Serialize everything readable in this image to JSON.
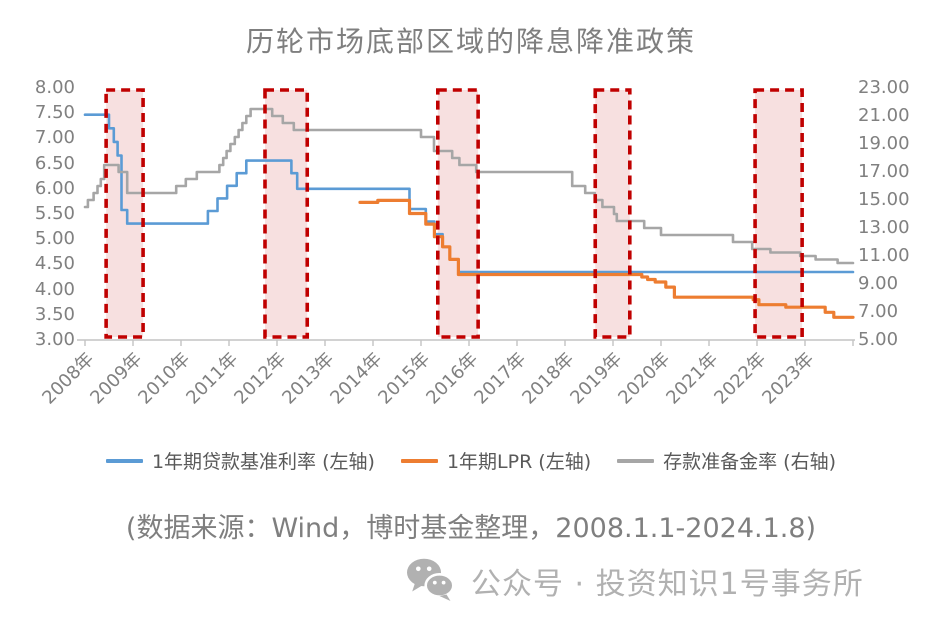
{
  "title": "历轮市场底部区域的降息降准政策",
  "source_note": "(数据来源：Wind，博时基金整理，2008.1.1-2024.1.8)",
  "footer": {
    "icon": "wechat-icon",
    "text": "公众号 · 投资知识1号事务所"
  },
  "colors": {
    "benchmark_blue": "#5B9BD5",
    "lpr_orange": "#ED7D31",
    "rrr_gray": "#A6A6A6",
    "highlight_border": "#C00000",
    "highlight_fill": "rgba(192,0,0,0.12)",
    "axis_line": "#C3C3C3",
    "tick_label": "#808080",
    "title_gray": "#7F7F7F"
  },
  "chart_data": {
    "type": "line",
    "title": "历轮市场底部区域的降息降准政策",
    "grid": false,
    "legend_position": "bottom",
    "x_axis": {
      "range": [
        2008,
        2024
      ],
      "tick_labels": [
        "2008年",
        "2009年",
        "2010年",
        "2011年",
        "2012年",
        "2013年",
        "2014年",
        "2015年",
        "2016年",
        "2017年",
        "2018年",
        "2019年",
        "2020年",
        "2021年",
        "2022年",
        "2023年"
      ]
    },
    "left_axis": {
      "range": [
        3,
        8
      ],
      "ticks": [
        "8.00",
        "7.50",
        "7.00",
        "6.50",
        "6.00",
        "5.50",
        "5.00",
        "4.50",
        "4.00",
        "3.50",
        "3.00"
      ]
    },
    "right_axis": {
      "range": [
        5,
        23
      ],
      "ticks": [
        "23.00",
        "21.00",
        "19.00",
        "17.00",
        "15.00",
        "13.00",
        "11.00",
        "9.00",
        "7.00",
        "5.00"
      ]
    },
    "highlight_regions": {
      "style": "red-dashed-box",
      "ranges": [
        [
          2008.44,
          2009.21
        ],
        [
          2011.75,
          2012.63
        ],
        [
          2015.35,
          2016.19
        ],
        [
          2018.63,
          2019.35
        ],
        [
          2021.96,
          2022.94
        ]
      ]
    },
    "series": [
      {
        "id": "benchmark-rate",
        "name": "1年期贷款基准利率 (左轴)",
        "axis": "left",
        "color": "#5B9BD5",
        "width": 2.6,
        "points": [
          [
            2008.0,
            7.47
          ],
          [
            2008.5,
            7.2
          ],
          [
            2008.6,
            6.93
          ],
          [
            2008.68,
            6.66
          ],
          [
            2008.76,
            5.58
          ],
          [
            2008.88,
            5.31
          ],
          [
            2010.56,
            5.56
          ],
          [
            2010.76,
            5.81
          ],
          [
            2010.96,
            6.06
          ],
          [
            2011.16,
            6.31
          ],
          [
            2011.36,
            6.56
          ],
          [
            2012.3,
            6.31
          ],
          [
            2012.42,
            6.0
          ],
          [
            2014.76,
            5.6
          ],
          [
            2015.1,
            5.35
          ],
          [
            2015.28,
            5.1
          ],
          [
            2015.45,
            4.85
          ],
          [
            2015.6,
            4.6
          ],
          [
            2015.78,
            4.35
          ],
          [
            2024.0,
            4.35
          ]
        ]
      },
      {
        "id": "lpr",
        "name": "1年期LPR (左轴)",
        "axis": "left",
        "color": "#ED7D31",
        "width": 3.2,
        "points": [
          [
            2013.73,
            5.73
          ],
          [
            2014.1,
            5.77
          ],
          [
            2014.76,
            5.51
          ],
          [
            2015.1,
            5.3
          ],
          [
            2015.28,
            5.05
          ],
          [
            2015.45,
            4.85
          ],
          [
            2015.6,
            4.6
          ],
          [
            2015.78,
            4.3
          ],
          [
            2019.6,
            4.25
          ],
          [
            2019.72,
            4.2
          ],
          [
            2019.88,
            4.15
          ],
          [
            2020.1,
            4.05
          ],
          [
            2020.28,
            3.85
          ],
          [
            2021.92,
            3.8
          ],
          [
            2022.04,
            3.7
          ],
          [
            2022.6,
            3.65
          ],
          [
            2023.42,
            3.55
          ],
          [
            2023.6,
            3.45
          ],
          [
            2024.0,
            3.45
          ]
        ]
      },
      {
        "id": "rrr",
        "name": "存款准备金率 (右轴)",
        "axis": "right",
        "color": "#A6A6A6",
        "width": 2.6,
        "points": [
          [
            2008.0,
            14.5
          ],
          [
            2008.06,
            15.0
          ],
          [
            2008.18,
            15.5
          ],
          [
            2008.26,
            16.0
          ],
          [
            2008.33,
            16.5
          ],
          [
            2008.4,
            17.5
          ],
          [
            2008.7,
            17.0
          ],
          [
            2008.88,
            15.5
          ],
          [
            2009.9,
            16.0
          ],
          [
            2010.1,
            16.5
          ],
          [
            2010.33,
            17.0
          ],
          [
            2010.8,
            17.5
          ],
          [
            2010.88,
            18.0
          ],
          [
            2010.95,
            18.5
          ],
          [
            2011.03,
            19.0
          ],
          [
            2011.12,
            19.5
          ],
          [
            2011.2,
            20.0
          ],
          [
            2011.28,
            20.5
          ],
          [
            2011.36,
            21.0
          ],
          [
            2011.45,
            21.5
          ],
          [
            2011.9,
            21.0
          ],
          [
            2012.12,
            20.5
          ],
          [
            2012.35,
            20.0
          ],
          [
            2015.0,
            19.5
          ],
          [
            2015.27,
            18.5
          ],
          [
            2015.65,
            18.0
          ],
          [
            2015.8,
            17.5
          ],
          [
            2016.15,
            17.0
          ],
          [
            2018.15,
            16.0
          ],
          [
            2018.42,
            15.5
          ],
          [
            2018.62,
            15.0
          ],
          [
            2018.78,
            14.5
          ],
          [
            2019.02,
            14.0
          ],
          [
            2019.08,
            13.5
          ],
          [
            2019.65,
            13.0
          ],
          [
            2020.0,
            12.5
          ],
          [
            2021.5,
            12.0
          ],
          [
            2021.9,
            11.5
          ],
          [
            2022.28,
            11.25
          ],
          [
            2022.9,
            11.0
          ],
          [
            2023.22,
            10.75
          ],
          [
            2023.68,
            10.5
          ],
          [
            2024.0,
            10.5
          ]
        ]
      }
    ]
  }
}
